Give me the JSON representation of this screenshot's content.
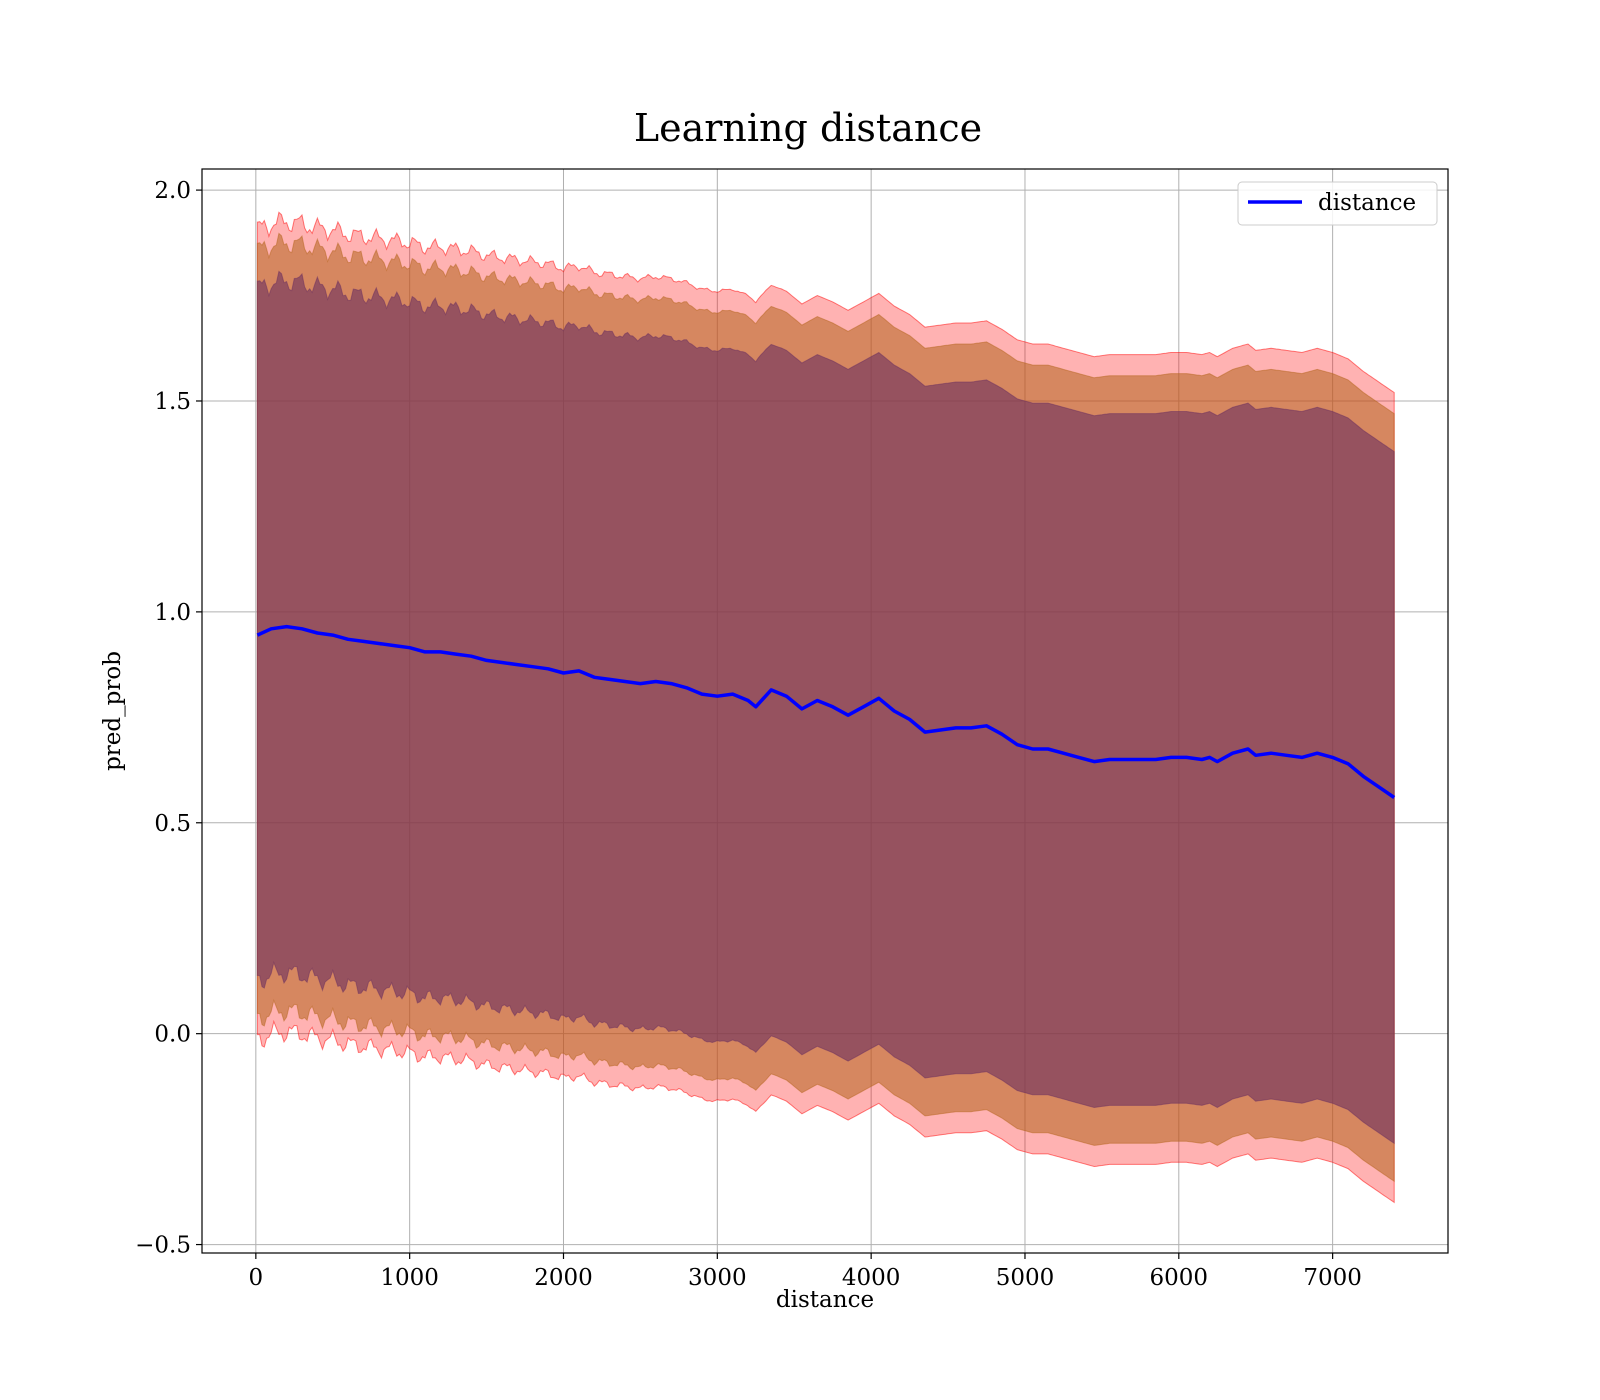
{
  "chart_data": {
    "type": "line",
    "title": "Learning distance",
    "xlabel": "distance",
    "ylabel": "pred_prob",
    "xlim": [
      -350,
      7750
    ],
    "ylim": [
      -0.52,
      2.05
    ],
    "xticks": [
      0,
      1000,
      2000,
      3000,
      4000,
      5000,
      6000,
      7000
    ],
    "yticks": [
      -0.5,
      0.0,
      0.5,
      1.0,
      1.5,
      2.0
    ],
    "ytick_labels": [
      "−0.5",
      "0.0",
      "0.5",
      "1.0",
      "1.5",
      "2.0"
    ],
    "grid": true,
    "legend": {
      "position": "top-right",
      "entries": [
        "distance"
      ]
    },
    "colors": {
      "line": "#0000ff",
      "band_outer": "#ff0000",
      "band_middle": "#b5651d",
      "band_inner": "#6b2f5f"
    },
    "x": [
      10,
      100,
      200,
      300,
      400,
      500,
      600,
      700,
      800,
      900,
      1000,
      1100,
      1200,
      1300,
      1400,
      1500,
      1600,
      1700,
      1800,
      1900,
      2000,
      2100,
      2200,
      2300,
      2400,
      2500,
      2600,
      2700,
      2800,
      2900,
      3000,
      3100,
      3200,
      3250,
      3350,
      3450,
      3550,
      3650,
      3750,
      3850,
      3950,
      4050,
      4150,
      4250,
      4350,
      4450,
      4550,
      4650,
      4750,
      4850,
      4950,
      5050,
      5150,
      5250,
      5350,
      5450,
      5550,
      5650,
      5750,
      5850,
      5950,
      6050,
      6150,
      6200,
      6250,
      6350,
      6450,
      6500,
      6600,
      6700,
      6800,
      6900,
      7000,
      7100,
      7200,
      7300,
      7400
    ],
    "series": [
      {
        "name": "distance",
        "values": [
          0.945,
          0.96,
          0.965,
          0.96,
          0.95,
          0.945,
          0.935,
          0.93,
          0.925,
          0.92,
          0.915,
          0.905,
          0.905,
          0.9,
          0.895,
          0.885,
          0.88,
          0.875,
          0.87,
          0.865,
          0.855,
          0.86,
          0.845,
          0.84,
          0.835,
          0.83,
          0.835,
          0.83,
          0.82,
          0.805,
          0.8,
          0.805,
          0.79,
          0.775,
          0.815,
          0.8,
          0.77,
          0.79,
          0.775,
          0.755,
          0.775,
          0.795,
          0.765,
          0.745,
          0.715,
          0.72,
          0.725,
          0.725,
          0.73,
          0.71,
          0.685,
          0.675,
          0.675,
          0.665,
          0.655,
          0.645,
          0.65,
          0.65,
          0.65,
          0.65,
          0.655,
          0.655,
          0.65,
          0.655,
          0.645,
          0.665,
          0.675,
          0.66,
          0.665,
          0.66,
          0.655,
          0.665,
          0.655,
          0.64,
          0.61,
          0.585,
          0.56
        ]
      }
    ],
    "bands": [
      {
        "kind": "outer",
        "upper_offset": 0.96,
        "lower_offset": 0.96
      },
      {
        "kind": "middle",
        "upper_offset": 0.91,
        "lower_offset": 0.91
      },
      {
        "kind": "inner",
        "upper_offset": 0.82,
        "lower_offset": 0.82
      }
    ]
  }
}
